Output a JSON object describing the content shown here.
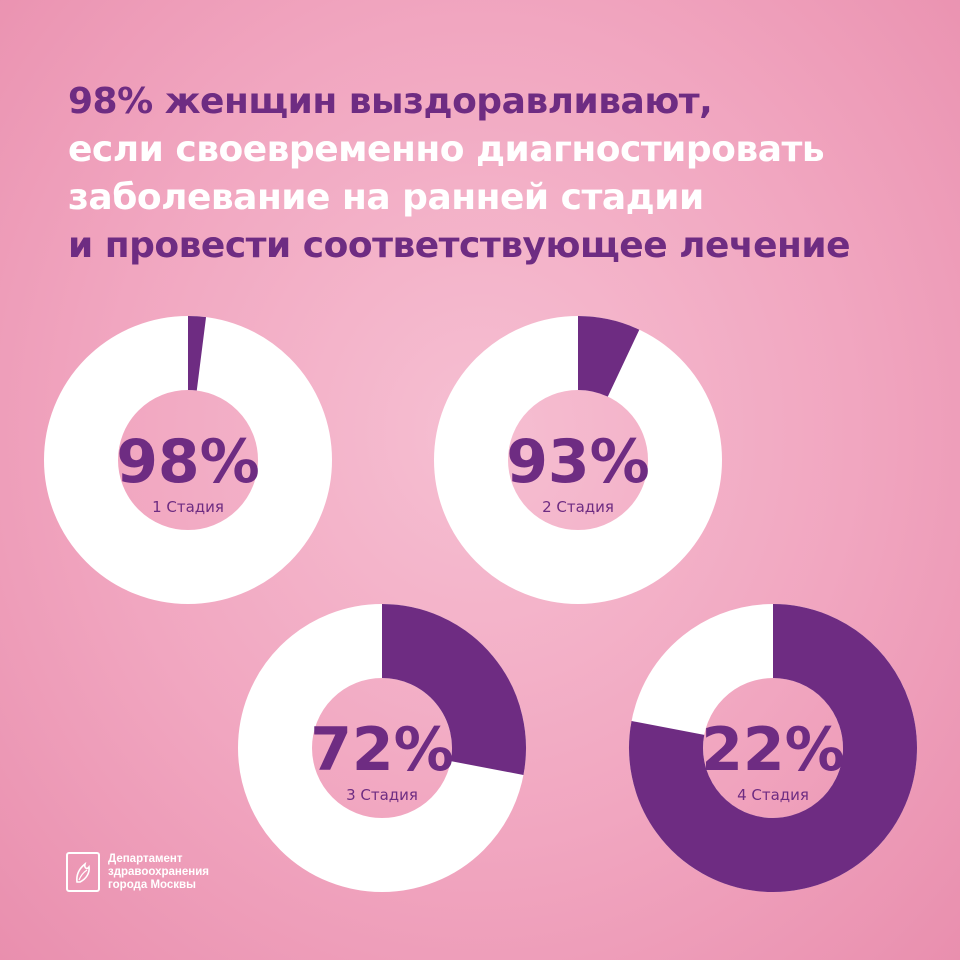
{
  "headline": [
    {
      "text": "98% женщин выздоравливают,",
      "color": "purple"
    },
    {
      "text": "если своевременно диагностировать",
      "color": "white"
    },
    {
      "text": "заболевание на ранней стадии",
      "color": "white"
    },
    {
      "text": "и провести соответствующее лечение",
      "color": "purple"
    }
  ],
  "colors": {
    "accent": "#6e2c82",
    "ring": "#ffffff",
    "background": "#f4b3c8"
  },
  "chart_data": [
    {
      "type": "pie",
      "label": "98%",
      "category": "1 Стадия",
      "value": 98
    },
    {
      "type": "pie",
      "label": "93%",
      "category": "2 Стадия",
      "value": 93
    },
    {
      "type": "pie",
      "label": "72%",
      "category": "3 Стадия",
      "value": 72
    },
    {
      "type": "pie",
      "label": "22%",
      "category": "4 Стадия",
      "value": 22
    }
  ],
  "logo": {
    "icon": "moscow-health-emblem-icon",
    "lines": [
      "Департамент",
      "здравоохранения",
      "города Москвы"
    ]
  }
}
